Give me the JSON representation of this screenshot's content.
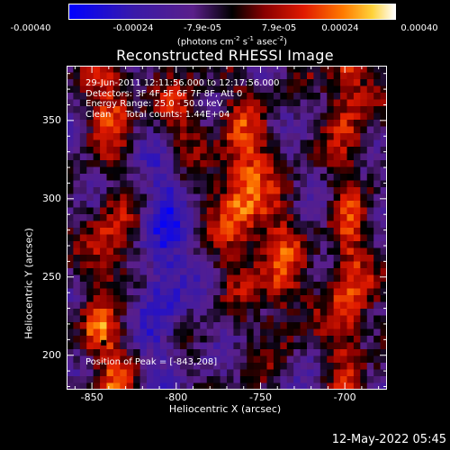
{
  "colorbar": {
    "ticks": [
      "-0.00040",
      "-0.00024",
      "-7.9e-05",
      "7.9e-05",
      "0.00024",
      "0.00040"
    ],
    "unit_prefix": "(photons cm",
    "unit_exp1": "-2",
    "unit_mid": " s",
    "unit_exp2": "-1",
    "unit_mid2": " asec",
    "unit_exp3": "-2",
    "unit_suffix": ")"
  },
  "chart_data": {
    "type": "heatmap",
    "title": "Reconstructed RHESSI Image",
    "xlabel": "Heliocentric X (arcsec)",
    "ylabel": "Heliocentric Y (arcsec)",
    "xlim": [
      -865,
      -675
    ],
    "ylim": [
      178,
      385
    ],
    "x_ticks": [
      "-850",
      "-800",
      "-750",
      "-700"
    ],
    "y_ticks": [
      "200",
      "250",
      "300",
      "350"
    ],
    "value_range": [
      -0.0004,
      0.0004
    ],
    "annotations": {
      "line1": "29-Jun-2011 12:11:56.000 to 12:17:56.000",
      "line2": "Detectors: 3F 4F 5F 6F 7F 8F, Att 0",
      "line3": "Energy Range: 25.0 - 50.0 keV",
      "line4": "Clean     Total counts: 1.44E+04",
      "peak": "Position of Peak = [-843,208]"
    },
    "peak": [
      -843,
      208
    ],
    "colormap": [
      "#0000ff",
      "#3a1aa8",
      "#5a1f8a",
      "#000000",
      "#8a0000",
      "#e01a00",
      "#ff7a00",
      "#ffd23a",
      "#ffffff"
    ]
  },
  "footer": {
    "timestamp": "12-May-2022 05:45"
  }
}
